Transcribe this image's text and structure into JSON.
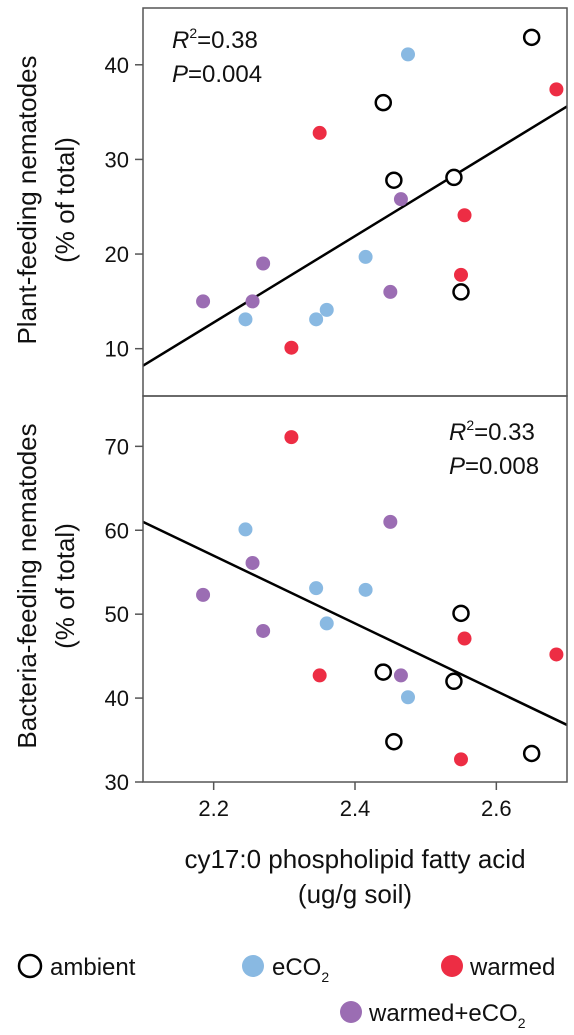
{
  "chart_data": [
    {
      "type": "scatter",
      "panel": "top",
      "ylabel_line1": "Plant-feeding nematodes",
      "ylabel_line2": "(% of total)",
      "ylim": [
        5,
        46
      ],
      "yticks": [
        10,
        20,
        30,
        40
      ],
      "stat_r2_label": "R",
      "stat_r2_sup": "2",
      "stat_r2_value": "=0.38",
      "stat_p_label": "P",
      "stat_p_value": "=0.004",
      "trendline": {
        "x": [
          2.1,
          2.7
        ],
        "y": [
          8.2,
          35.6
        ]
      },
      "series": [
        {
          "name": "ambient",
          "points": [
            [
              2.44,
              36
            ],
            [
              2.455,
              27.8
            ],
            [
              2.54,
              28.1
            ],
            [
              2.55,
              16
            ],
            [
              2.65,
              42.9
            ]
          ]
        },
        {
          "name": "eCO2",
          "points": [
            [
              2.245,
              13.1
            ],
            [
              2.345,
              13.1
            ],
            [
              2.36,
              14.1
            ],
            [
              2.415,
              19.7
            ],
            [
              2.475,
              41.1
            ]
          ]
        },
        {
          "name": "warmed",
          "points": [
            [
              2.31,
              10.1
            ],
            [
              2.35,
              32.8
            ],
            [
              2.55,
              17.8
            ],
            [
              2.555,
              24.1
            ],
            [
              2.685,
              37.4
            ]
          ]
        },
        {
          "name": "warmed+eCO2",
          "points": [
            [
              2.185,
              15
            ],
            [
              2.255,
              15
            ],
            [
              2.27,
              19
            ],
            [
              2.45,
              16
            ],
            [
              2.465,
              25.8
            ]
          ]
        }
      ]
    },
    {
      "type": "scatter",
      "panel": "bottom",
      "ylabel_line1": "Bacteria-feeding nematodes",
      "ylabel_line2": "(% of total)",
      "ylim": [
        30,
        76
      ],
      "yticks": [
        30,
        40,
        50,
        60,
        70
      ],
      "stat_r2_label": "R",
      "stat_r2_sup": "2",
      "stat_r2_value": "=0.33",
      "stat_p_label": "P",
      "stat_p_value": "=0.008",
      "trendline": {
        "x": [
          2.1,
          2.7
        ],
        "y": [
          61,
          36.8
        ]
      },
      "series": [
        {
          "name": "ambient",
          "points": [
            [
              2.44,
              43.1
            ],
            [
              2.455,
              34.8
            ],
            [
              2.54,
              42
            ],
            [
              2.55,
              50.1
            ],
            [
              2.65,
              33.4
            ]
          ]
        },
        {
          "name": "eCO2",
          "points": [
            [
              2.245,
              60.1
            ],
            [
              2.345,
              53.1
            ],
            [
              2.36,
              48.9
            ],
            [
              2.415,
              52.9
            ],
            [
              2.475,
              40.1
            ]
          ]
        },
        {
          "name": "warmed",
          "points": [
            [
              2.31,
              71.1
            ],
            [
              2.35,
              42.7
            ],
            [
              2.55,
              32.7
            ],
            [
              2.555,
              47.1
            ],
            [
              2.685,
              45.2
            ]
          ]
        },
        {
          "name": "warmed+eCO2",
          "points": [
            [
              2.185,
              52.3
            ],
            [
              2.255,
              56.1
            ],
            [
              2.27,
              48
            ],
            [
              2.45,
              61
            ],
            [
              2.465,
              42.7
            ]
          ]
        }
      ]
    }
  ],
  "x_axis": {
    "xlim": [
      2.1,
      2.7
    ],
    "ticks": [
      2.2,
      2.4,
      2.6
    ],
    "tick_labels": [
      "2.2",
      "2.4",
      "2.6"
    ],
    "label_line1": "cy17:0 phospholipid fatty acid",
    "label_line2": "(ug/g soil)"
  },
  "legend": {
    "placement": "bottom",
    "items": [
      {
        "key": "ambient",
        "label": "ambient",
        "sub": "",
        "style": "open",
        "color": "#000000"
      },
      {
        "key": "eCO2",
        "label": "eCO",
        "sub": "2",
        "style": "filled",
        "color": "#89b9e2"
      },
      {
        "key": "warmed",
        "label": "warmed",
        "sub": "",
        "style": "filled",
        "color": "#ed2d44"
      },
      {
        "key": "warmed+eCO2",
        "label": "warmed+eCO",
        "sub": "2",
        "style": "filled",
        "color": "#9b6db3"
      }
    ]
  },
  "colors": {
    "ambient": "#000000",
    "eCO2": "#89b9e2",
    "warmed": "#ed2d44",
    "warmed+eCO2": "#9b6db3",
    "axis": "#555555",
    "trendline": "#000000"
  }
}
